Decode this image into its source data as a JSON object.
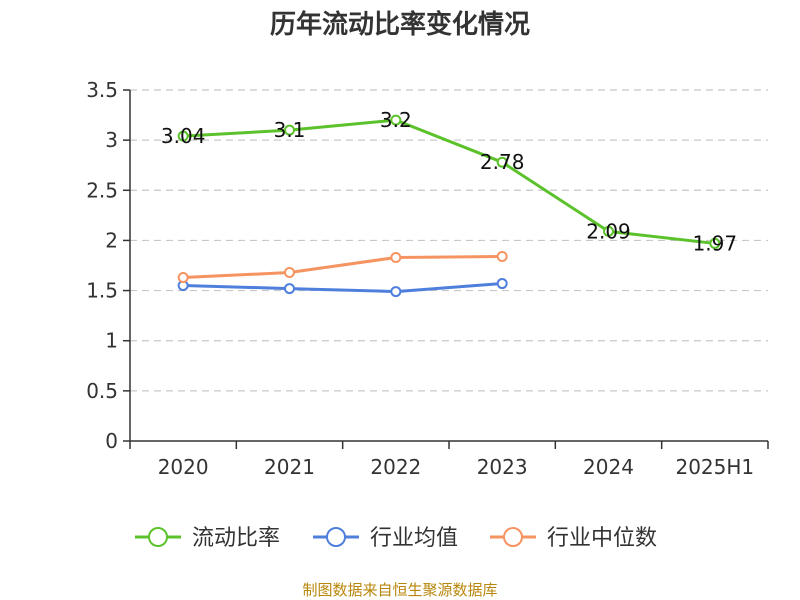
{
  "chart_data": {
    "type": "line",
    "title": "历年流动比率变化情况",
    "categories": [
      "2020",
      "2021",
      "2022",
      "2023",
      "2024",
      "2025H1"
    ],
    "ylim": [
      0,
      3.5
    ],
    "yticks": [
      "0",
      "0.5",
      "1",
      "1.5",
      "2",
      "2.5",
      "3",
      "3.5"
    ],
    "grid": true,
    "legend_position": "bottom",
    "series": [
      {
        "name": "流动比率",
        "color": "#5cc22b",
        "values": [
          3.04,
          3.1,
          3.2,
          2.78,
          2.09,
          1.97
        ],
        "labels": [
          "3.04",
          "3.1",
          "3.2",
          "2.78",
          "2.09",
          "1.97"
        ]
      },
      {
        "name": "行业均值",
        "color": "#4f7fdd",
        "values": [
          1.55,
          1.52,
          1.49,
          1.57,
          null,
          null
        ]
      },
      {
        "name": "行业中位数",
        "color": "#f59461",
        "values": [
          1.63,
          1.68,
          1.83,
          1.84,
          null,
          null
        ]
      }
    ]
  },
  "source": "制图数据来自恒生聚源数据库"
}
